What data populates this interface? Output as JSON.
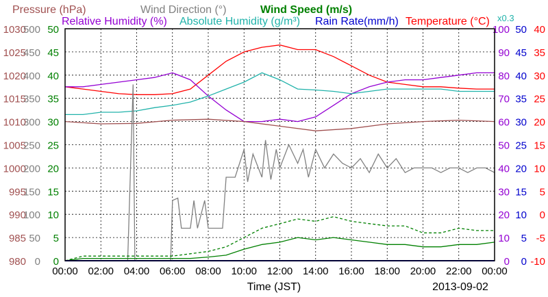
{
  "chart_data": {
    "type": "line",
    "date_label": "2013-09-02",
    "xlabel": "Time (JST)",
    "x_ticks": [
      "00:00",
      "02:00",
      "04:00",
      "06:00",
      "08:00",
      "10:00",
      "12:00",
      "14:00",
      "16:00",
      "18:00",
      "20:00",
      "22:00",
      "00:00"
    ],
    "x_range_hours": [
      0,
      24
    ],
    "grid": true,
    "header_row1": [
      {
        "text": "Pressure (hPa)",
        "color": "#a05050"
      },
      {
        "text": "Wind Direction (°)",
        "color": "#808080"
      },
      {
        "text": "Wind Speed (m/s)",
        "color": "#008000"
      }
    ],
    "header_row2": [
      {
        "text": "Relative Humidity (%)",
        "color": "#9400d3"
      },
      {
        "text": "Absolute Humidity (g/m³)",
        "color": "#20b2aa"
      },
      {
        "text": "Rain Rate(mm/h)",
        "color": "#0000cd"
      },
      {
        "text": "Temperature (°C)",
        "color": "#ff0000"
      }
    ],
    "axes": {
      "pressure": {
        "color": "#a05050",
        "range": [
          980,
          1030
        ],
        "ticks": [
          "1030",
          "1025",
          "1020",
          "1015",
          "1010",
          "1005",
          "1000",
          "995",
          "990",
          "985",
          "980"
        ]
      },
      "wind_direction": {
        "color": "#808080",
        "range": [
          0,
          500
        ],
        "ticks": [
          "500",
          "450",
          "400",
          "350",
          "300",
          "250",
          "200",
          "150",
          "100",
          "50",
          "0"
        ]
      },
      "wind_speed": {
        "color": "#008000",
        "range": [
          0,
          50
        ],
        "ticks": [
          "50",
          "45",
          "40",
          "35",
          "30",
          "25",
          "20",
          "15",
          "10",
          "5",
          "0"
        ]
      },
      "relative_humidity": {
        "color": "#9400d3",
        "range": [
          0,
          100
        ],
        "ticks": [
          "100",
          "90",
          "80",
          "70",
          "60",
          "50",
          "40",
          "30",
          "20",
          "10",
          "0"
        ]
      },
      "absolute_humidity": {
        "color": "#20b2aa",
        "label": "x0.3",
        "range": [
          0,
          50
        ],
        "ticks": [
          "50",
          "45",
          "40",
          "35",
          "30",
          "25",
          "20",
          "15",
          "10",
          "5",
          "0"
        ]
      },
      "rain_rate": {
        "color": "#0000cd",
        "range": [
          0,
          50
        ],
        "ticks": [
          "50",
          "45",
          "40",
          "35",
          "30",
          "25",
          "20",
          "15",
          "10",
          "5",
          "0"
        ]
      },
      "temperature": {
        "color": "#ff0000",
        "range": [
          -10,
          40
        ],
        "ticks": [
          "40",
          "35",
          "30",
          "25",
          "20",
          "15",
          "10",
          "5",
          "0",
          "-5",
          "-10"
        ]
      }
    },
    "series": [
      {
        "name": "Temperature",
        "axis": "temperature",
        "color": "#ff0000",
        "x": [
          0,
          1,
          2,
          3,
          4,
          5,
          6,
          7,
          8,
          9,
          10,
          11,
          12,
          13,
          14,
          15,
          16,
          17,
          18,
          19,
          20,
          21,
          22,
          23,
          24
        ],
        "y": [
          27.5,
          27,
          26.5,
          26,
          25.8,
          25.8,
          26,
          27,
          30,
          33,
          35,
          36,
          36.5,
          35.5,
          35.5,
          34,
          32,
          30,
          28.5,
          28,
          27.5,
          27.5,
          27.2,
          27,
          27
        ]
      },
      {
        "name": "Relative Humidity",
        "axis": "relative_humidity",
        "color": "#9400d3",
        "x": [
          0,
          1,
          2,
          3,
          4,
          5,
          6,
          7,
          8,
          9,
          10,
          11,
          12,
          13,
          14,
          15,
          16,
          17,
          18,
          19,
          20,
          21,
          22,
          23,
          24
        ],
        "y": [
          75,
          75,
          76,
          77,
          78,
          79,
          81,
          78,
          71,
          65,
          60,
          60,
          61,
          60,
          62,
          67,
          72,
          75,
          77,
          78,
          78,
          79,
          80,
          81,
          81
        ]
      },
      {
        "name": "Absolute Humidity (x0.3)",
        "axis": "absolute_humidity",
        "color": "#20b2aa",
        "x": [
          0,
          1,
          2,
          3,
          4,
          5,
          6,
          7,
          8,
          9,
          10,
          11,
          12,
          13,
          14,
          15,
          16,
          17,
          18,
          19,
          20,
          21,
          22,
          23,
          24
        ],
        "y": [
          31.5,
          31.5,
          32,
          32,
          32.3,
          33,
          33.5,
          34.2,
          35.5,
          37,
          38.5,
          40.5,
          39,
          37,
          36.8,
          36.5,
          36,
          36.5,
          37,
          37,
          37,
          37,
          36.5,
          36.5,
          36.5
        ]
      },
      {
        "name": "Pressure",
        "axis": "pressure",
        "color": "#a05050",
        "x": [
          0,
          2,
          4,
          6,
          8,
          10,
          12,
          14,
          16,
          18,
          20,
          22,
          24
        ],
        "y": [
          1010,
          1009.5,
          1009.6,
          1010.3,
          1010.5,
          1010,
          1009,
          1008,
          1008.5,
          1009.5,
          1010,
          1010.3,
          1010
        ]
      },
      {
        "name": "Wind Direction",
        "axis": "wind_direction",
        "color": "#808080",
        "x": [
          0,
          1,
          2,
          2.5,
          3,
          3.5,
          3.8,
          3.9,
          4,
          5,
          5.9,
          6,
          6.3,
          6.5,
          7,
          7.2,
          7.4,
          7.8,
          8,
          8.2,
          8.8,
          9,
          9.5,
          10,
          10.2,
          10.5,
          11,
          11.2,
          11.5,
          11.8,
          12,
          12.5,
          13,
          13.3,
          13.6,
          14,
          14.5,
          15,
          15.5,
          16,
          16.5,
          17,
          17.5,
          18,
          18.5,
          19,
          19.5,
          20,
          20.5,
          21,
          21.5,
          22,
          22.5,
          23,
          23.5,
          24
        ],
        "y": [
          0,
          0,
          0,
          0,
          0,
          0,
          380,
          0,
          0,
          0,
          0,
          130,
          135,
          70,
          70,
          130,
          70,
          130,
          70,
          70,
          70,
          180,
          180,
          240,
          170,
          230,
          180,
          260,
          175,
          240,
          200,
          250,
          210,
          240,
          180,
          240,
          200,
          230,
          210,
          200,
          220,
          190,
          230,
          200,
          220,
          190,
          200,
          200,
          200,
          190,
          200,
          200,
          190,
          200,
          200,
          190
        ]
      },
      {
        "name": "Wind Speed (max)",
        "axis": "wind_speed",
        "color": "#008000",
        "dashed": true,
        "x": [
          0,
          1,
          2,
          3,
          4,
          5,
          6,
          7,
          8,
          9,
          10,
          11,
          12,
          13,
          14,
          15,
          16,
          17,
          18,
          19,
          20,
          21,
          22,
          23,
          24
        ],
        "y": [
          0,
          1,
          1,
          1,
          1,
          1,
          1,
          1.5,
          2,
          3,
          5,
          7,
          8,
          9,
          8.5,
          9.5,
          8.5,
          8,
          7.5,
          7.5,
          6,
          6,
          7,
          6.5,
          6.5
        ]
      },
      {
        "name": "Wind Speed (mean)",
        "axis": "wind_speed",
        "color": "#008000",
        "x": [
          0,
          1,
          2,
          3,
          4,
          5,
          6,
          7,
          8,
          9,
          10,
          11,
          12,
          13,
          14,
          15,
          16,
          17,
          18,
          19,
          20,
          21,
          22,
          23,
          24
        ],
        "y": [
          0,
          0.5,
          0.5,
          0.5,
          0.5,
          0.5,
          0.5,
          0.5,
          0.8,
          1.2,
          2.5,
          3.5,
          4,
          5,
          4.5,
          5,
          4.5,
          4,
          3.5,
          3.5,
          3,
          3,
          3.5,
          3.5,
          4
        ]
      },
      {
        "name": "Rain Rate",
        "axis": "rain_rate",
        "color": "#0000cd",
        "x": [
          0,
          24
        ],
        "y": [
          0,
          0
        ]
      }
    ]
  }
}
